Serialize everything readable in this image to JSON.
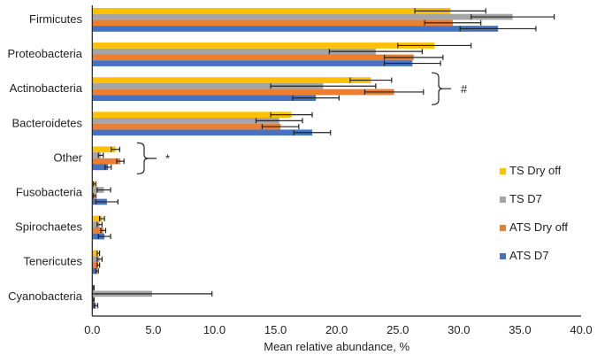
{
  "chart_data": {
    "type": "bar",
    "orientation": "horizontal",
    "title": "",
    "xlabel": "Mean relative abundance, %",
    "ylabel": "",
    "xlim": [
      0,
      40
    ],
    "xticks": [
      "0.0",
      "5.0",
      "10.0",
      "15.0",
      "20.0",
      "25.0",
      "30.0",
      "35.0",
      "40.0"
    ],
    "categories": [
      "Firmicutes",
      "Proteobacteria",
      "Actinobacteria",
      "Bacteroidetes",
      "Other",
      "Fusobacteria",
      "Spirochaetes",
      "Tenericutes",
      "Cyanobacteria"
    ],
    "series": [
      {
        "name": "TS Dry off",
        "color": "#FFC000",
        "values": [
          29.3,
          28.0,
          22.8,
          16.3,
          1.9,
          0.2,
          0.8,
          0.5,
          0.1
        ],
        "errors": [
          2.9,
          3.0,
          1.7,
          1.7,
          0.35,
          0.1,
          0.2,
          0.1,
          0.05
        ]
      },
      {
        "name": "TS D7",
        "color": "#A5A5A5",
        "values": [
          34.4,
          23.2,
          18.9,
          15.3,
          0.7,
          0.95,
          0.6,
          0.6,
          4.9
        ],
        "errors": [
          3.4,
          3.8,
          4.3,
          1.9,
          0.2,
          0.55,
          0.2,
          0.2,
          4.9
        ]
      },
      {
        "name": "ATS Dry off",
        "color": "#ED7D31",
        "values": [
          29.5,
          26.3,
          24.7,
          15.4,
          2.3,
          0.2,
          0.9,
          0.5,
          0.1
        ],
        "errors": [
          2.3,
          2.4,
          2.4,
          1.5,
          0.3,
          0.1,
          0.2,
          0.1,
          0.05
        ]
      },
      {
        "name": "ATS D7",
        "color": "#4472C4",
        "values": [
          33.2,
          26.2,
          18.3,
          18.0,
          1.3,
          1.2,
          1.0,
          0.4,
          0.3
        ],
        "errors": [
          3.1,
          2.3,
          1.9,
          1.5,
          0.25,
          0.9,
          0.5,
          0.1,
          0.15
        ]
      }
    ],
    "annotations": [
      {
        "category": "Actinobacteria",
        "text": "#"
      },
      {
        "category": "Other",
        "text": "*"
      }
    ],
    "legend_position": "right",
    "grid": false
  }
}
